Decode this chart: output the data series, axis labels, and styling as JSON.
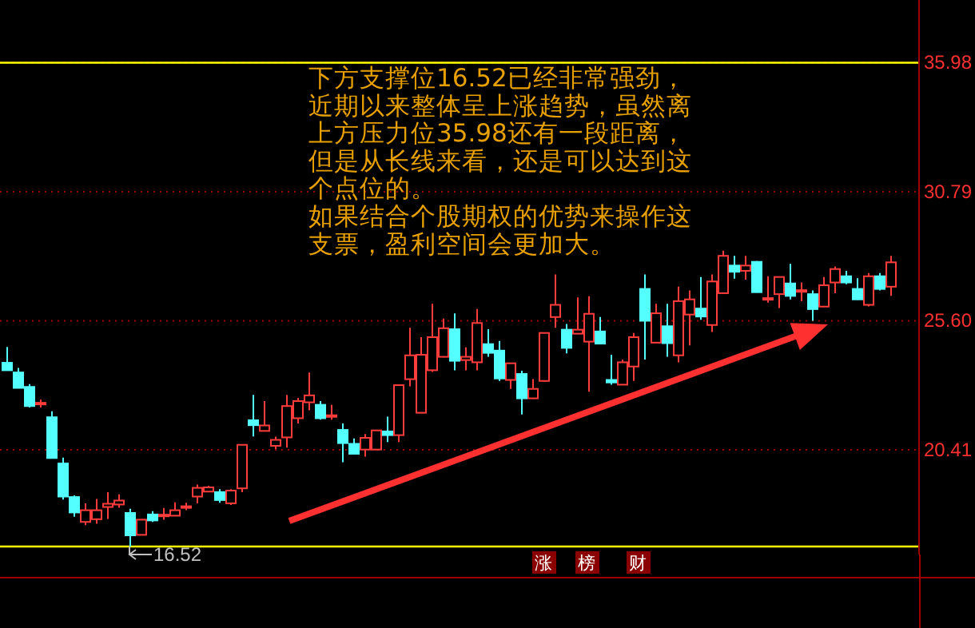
{
  "chart_data": {
    "type": "candlestick",
    "categories": [
      null,
      null,
      null,
      null,
      null,
      null,
      null,
      null,
      null,
      null,
      null,
      null,
      null,
      null,
      null,
      null,
      null,
      null,
      null,
      null,
      null,
      null,
      null,
      null,
      null,
      null,
      null,
      null,
      null,
      null,
      null,
      null,
      null,
      null,
      null,
      null,
      null,
      null,
      null,
      null,
      null,
      null,
      null,
      null,
      null,
      null,
      null,
      null,
      null,
      null,
      null,
      null,
      null,
      null,
      null,
      null,
      null,
      null,
      null,
      null,
      null,
      null,
      null,
      null,
      null,
      null,
      null,
      null,
      null,
      null,
      null,
      null,
      null,
      null,
      null,
      null,
      null,
      null,
      null,
      null
    ],
    "ohlc": [
      [
        23.91,
        24.55,
        23.59,
        23.61
      ],
      [
        23.52,
        23.7,
        22.88,
        22.9
      ],
      [
        22.94,
        23.05,
        22.11,
        22.17
      ],
      [
        22.28,
        22.43,
        22.11,
        22.3
      ],
      [
        21.72,
        21.96,
        20.06,
        20.08
      ],
      [
        19.86,
        20.1,
        18.41,
        18.53
      ],
      [
        18.51,
        18.58,
        17.72,
        17.89
      ],
      [
        17.51,
        18.26,
        17.38,
        17.98
      ],
      [
        17.62,
        18.43,
        17.44,
        17.98
      ],
      [
        18.11,
        18.71,
        17.63,
        18.24
      ],
      [
        18.21,
        18.62,
        18.08,
        18.37
      ],
      [
        17.87,
        18.04,
        16.52,
        16.97
      ],
      [
        16.99,
        17.62,
        16.97,
        17.6
      ],
      [
        17.81,
        17.94,
        17.51,
        17.57
      ],
      [
        17.78,
        18.07,
        17.6,
        17.8
      ],
      [
        17.76,
        18.3,
        17.74,
        17.98
      ],
      [
        18.12,
        18.28,
        17.98,
        18.14
      ],
      [
        18.53,
        19.01,
        18.26,
        18.88
      ],
      [
        18.73,
        18.96,
        18.71,
        18.9
      ],
      [
        18.71,
        18.83,
        18.28,
        18.39
      ],
      [
        18.26,
        18.83,
        18.19,
        18.77
      ],
      [
        18.86,
        20.63,
        18.71,
        20.61
      ],
      [
        21.6,
        22.62,
        20.95,
        21.4
      ],
      [
        21.17,
        22.37,
        21.15,
        21.39
      ],
      [
        20.57,
        20.94,
        20.44,
        20.81
      ],
      [
        20.91,
        22.62,
        20.5,
        22.17
      ],
      [
        21.68,
        22.5,
        21.47,
        22.37
      ],
      [
        22.32,
        23.52,
        22.0,
        22.6
      ],
      [
        22.22,
        22.37,
        21.62,
        21.68
      ],
      [
        21.78,
        22.22,
        21.62,
        21.8
      ],
      [
        21.21,
        21.47,
        19.91,
        20.68
      ],
      [
        20.65,
        20.87,
        20.23,
        20.25
      ],
      [
        20.42,
        21.04,
        20.14,
        20.89
      ],
      [
        20.42,
        21.21,
        20.4,
        21.19
      ],
      [
        21.15,
        21.74,
        20.72,
        21.0
      ],
      [
        21.0,
        23.03,
        20.72,
        23.01
      ],
      [
        23.25,
        25.32,
        22.96,
        24.21
      ],
      [
        21.9,
        24.94,
        21.88,
        24.23
      ],
      [
        23.61,
        26.28,
        23.54,
        24.94
      ],
      [
        24.15,
        25.69,
        24.13,
        25.3
      ],
      [
        25.26,
        25.9,
        23.61,
        23.99
      ],
      [
        24.02,
        24.53,
        23.61,
        24.15
      ],
      [
        23.93,
        26.07,
        23.61,
        25.51
      ],
      [
        24.66,
        25.26,
        24.15,
        24.31
      ],
      [
        24.4,
        24.79,
        23.18,
        23.28
      ],
      [
        23.22,
        23.91,
        22.86,
        23.89
      ],
      [
        23.46,
        23.59,
        21.83,
        22.48
      ],
      [
        22.48,
        23.25,
        22.46,
        22.86
      ],
      [
        23.18,
        25.13,
        23.16,
        25.11
      ],
      [
        25.75,
        27.46,
        25.32,
        26.24
      ],
      [
        25.24,
        25.47,
        24.29,
        24.51
      ],
      [
        25.08,
        26.54,
        25.06,
        25.24
      ],
      [
        24.76,
        26.59,
        22.75,
        25.88
      ],
      [
        25.17,
        25.75,
        24.66,
        24.68
      ],
      [
        23.22,
        24.23,
        23.03,
        23.12
      ],
      [
        23.03,
        24.04,
        23.01,
        23.93
      ],
      [
        23.76,
        25.11,
        23.18,
        24.94
      ],
      [
        26.88,
        27.46,
        24.04,
        25.6
      ],
      [
        24.72,
        26.28,
        24.7,
        25.9
      ],
      [
        25.38,
        26.28,
        24.15,
        24.7
      ],
      [
        24.21,
        26.97,
        23.93,
        26.39
      ],
      [
        25.85,
        26.82,
        24.61,
        26.46
      ],
      [
        26.09,
        27.36,
        25.64,
        25.77
      ],
      [
        25.43,
        27.46,
        25.15,
        27.18
      ],
      [
        26.71,
        28.42,
        26.69,
        28.21
      ],
      [
        27.82,
        28.21,
        27.29,
        27.57
      ],
      [
        27.61,
        28.21,
        27.25,
        27.82
      ],
      [
        27.97,
        28.0,
        26.73,
        26.75
      ],
      [
        26.49,
        27.39,
        26.33,
        26.51
      ],
      [
        26.67,
        27.38,
        26.11,
        27.36
      ],
      [
        27.1,
        27.89,
        26.46,
        26.6
      ],
      [
        26.81,
        27.14,
        26.39,
        26.83
      ],
      [
        26.67,
        26.82,
        25.6,
        26.07
      ],
      [
        26.17,
        27.36,
        26.15,
        27.03
      ],
      [
        27.14,
        27.78,
        26.71,
        27.68
      ],
      [
        27.39,
        27.61,
        27.07,
        27.14
      ],
      [
        26.88,
        27.31,
        26.44,
        26.46
      ],
      [
        26.24,
        27.52,
        26.18,
        27.39
      ],
      [
        27.39,
        27.52,
        26.82,
        26.88
      ],
      [
        26.97,
        28.21,
        26.6,
        27.95
      ]
    ],
    "ylim": [
      16.2,
      38.5
    ],
    "yticks": [
      35.98,
      30.79,
      {
        "value": 25.6,
        "label": "25.60"
      },
      20.41
    ],
    "grid": "y",
    "ref_lines": [
      {
        "axis": "y",
        "value": 35.98,
        "color": "#ffff00"
      },
      {
        "axis": "y",
        "value": 16.52,
        "color": "#ffff00"
      }
    ],
    "annotations": [
      "下方支撑位16.52已经非常强劲，",
      "近期以来整体呈上涨趋势，虽然离",
      "上方压力位35.98还有一段距离，",
      "但是从长线来看，还是可以达到这",
      "个点位的。",
      "如果结合个股期权的优势来操作这",
      "支票，盈利空间会更加大。",
      {
        "text": "16.52",
        "y": 16.52
      },
      "涨",
      "榜",
      "财"
    ]
  }
}
